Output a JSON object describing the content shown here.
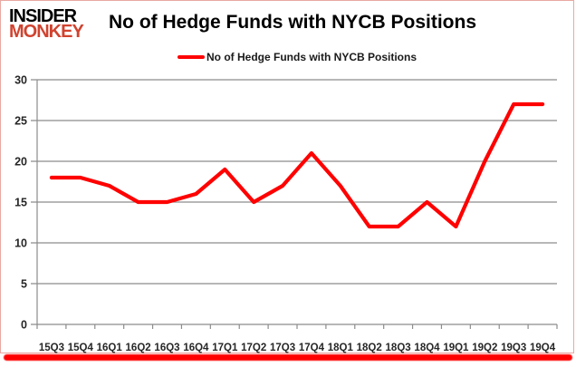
{
  "branding": {
    "logo_line1": "INSIDER",
    "logo_line2": "MONKEY",
    "logo_color_primary": "#000000",
    "logo_color_secondary": "#d0432f"
  },
  "header": {
    "title": "No of Hedge Funds with NYCB Positions"
  },
  "legend": {
    "label": "No of Hedge Funds with NYCB Positions",
    "swatch_color": "#ff0000"
  },
  "chart_data": {
    "type": "line",
    "title": "No of Hedge Funds with NYCB Positions",
    "categories": [
      "15Q3",
      "15Q4",
      "16Q1",
      "16Q2",
      "16Q3",
      "16Q4",
      "17Q1",
      "17Q2",
      "17Q3",
      "17Q4",
      "18Q1",
      "18Q2",
      "18Q3",
      "18Q4",
      "19Q1",
      "19Q2",
      "19Q3",
      "19Q4"
    ],
    "series": [
      {
        "name": "No of Hedge Funds with NYCB Positions",
        "color": "#ff0000",
        "values": [
          18,
          18,
          17,
          15,
          15,
          16,
          19,
          15,
          17,
          21,
          17,
          12,
          12,
          15,
          12,
          20,
          27,
          27
        ]
      }
    ],
    "xlabel": "",
    "ylabel": "",
    "ylim": [
      0,
      30
    ],
    "ytick_step": 5,
    "yticks": [
      0,
      5,
      10,
      15,
      20,
      25,
      30
    ],
    "grid": true,
    "legend_position": "top-center"
  },
  "colors": {
    "grid": "#8c8c8c",
    "axis_line": "#8c8c8c",
    "axis_text": "#262626",
    "frame_border": "#e9a8a3",
    "bottom_bar": "#ff0000",
    "background": "#ffffff"
  }
}
